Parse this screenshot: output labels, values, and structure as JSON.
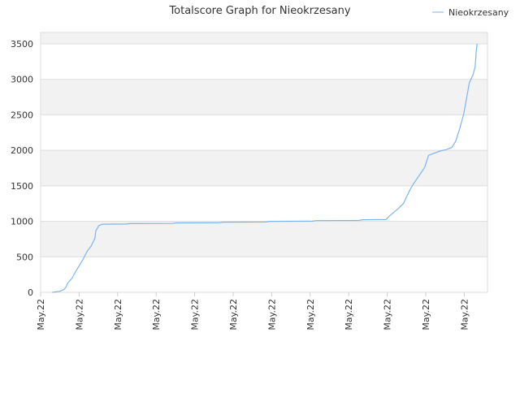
{
  "chart_data": {
    "type": "line",
    "title": "Totalscore Graph for Nieokrzesany",
    "xlabel": "",
    "ylabel": "",
    "x_tick_labels": [
      "May.22",
      "May.22",
      "May.22",
      "May.22",
      "May.22",
      "May.22",
      "May.22",
      "May.22",
      "May.22",
      "May.22",
      "May.22",
      "May.22"
    ],
    "y_ticks": [
      0,
      500,
      1000,
      1500,
      2000,
      2500,
      3000,
      3500
    ],
    "ylim": [
      0,
      3660
    ],
    "xlim": [
      0,
      11
    ],
    "grid": true,
    "legend_position": "top-right",
    "colors": {
      "line": "#7cb5ec",
      "band": "#f2f2f2",
      "grid": "#dddddd",
      "axis": "#cccccc"
    },
    "series": [
      {
        "name": "Nieokrzesany",
        "points": [
          [
            0.3,
            0
          ],
          [
            0.5,
            15
          ],
          [
            0.6,
            40
          ],
          [
            0.65,
            70
          ],
          [
            0.7,
            130
          ],
          [
            0.8,
            190
          ],
          [
            0.9,
            290
          ],
          [
            1.0,
            380
          ],
          [
            1.1,
            470
          ],
          [
            1.2,
            580
          ],
          [
            1.3,
            650
          ],
          [
            1.4,
            760
          ],
          [
            1.42,
            860
          ],
          [
            1.5,
            940
          ],
          [
            1.6,
            960
          ],
          [
            2.2,
            962
          ],
          [
            2.3,
            968
          ],
          [
            3.4,
            970
          ],
          [
            3.5,
            978
          ],
          [
            4.6,
            980
          ],
          [
            4.7,
            988
          ],
          [
            5.8,
            990
          ],
          [
            5.9,
            1000
          ],
          [
            7.0,
            1002
          ],
          [
            7.1,
            1010
          ],
          [
            8.2,
            1012
          ],
          [
            8.3,
            1022
          ],
          [
            8.9,
            1025
          ],
          [
            9.0,
            1080
          ],
          [
            9.2,
            1170
          ],
          [
            9.35,
            1250
          ],
          [
            9.5,
            1420
          ],
          [
            9.6,
            1520
          ],
          [
            9.75,
            1640
          ],
          [
            9.9,
            1760
          ],
          [
            10.0,
            1930
          ],
          [
            10.15,
            1960
          ],
          [
            10.3,
            1990
          ],
          [
            10.45,
            2010
          ],
          [
            10.6,
            2040
          ],
          [
            10.7,
            2130
          ],
          [
            10.8,
            2300
          ],
          [
            10.9,
            2500
          ],
          [
            11.0,
            2800
          ],
          [
            11.05,
            2950
          ],
          [
            11.15,
            3070
          ],
          [
            11.2,
            3180
          ],
          [
            11.23,
            3400
          ],
          [
            11.25,
            3500
          ]
        ]
      }
    ]
  }
}
